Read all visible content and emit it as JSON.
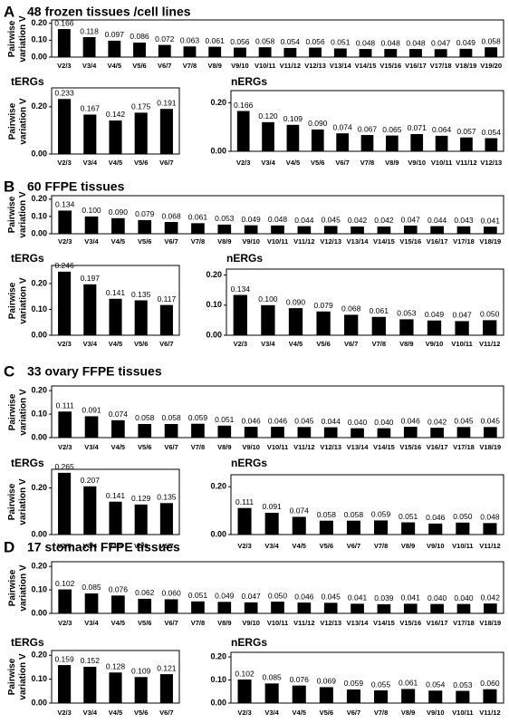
{
  "chart_data": [
    {
      "type": "bar",
      "panel_label": "A",
      "title": "48 frozen tissues /cell lines",
      "ylabel": "Pairwise variation V",
      "color": "#000000",
      "categories": [
        "V2/3",
        "V3/4",
        "V4/5",
        "V5/6",
        "V6/7",
        "V7/8",
        "V8/9",
        "V9/10",
        "V10/11",
        "V11/12",
        "V12/13",
        "V13/14",
        "V14/15",
        "V15/16",
        "V16/17",
        "V17/18",
        "V18/19",
        "V19/20"
      ],
      "values": [
        0.166,
        0.118,
        0.097,
        0.086,
        0.072,
        0.063,
        0.061,
        0.056,
        0.058,
        0.054,
        0.056,
        0.051,
        0.048,
        0.048,
        0.048,
        0.047,
        0.049,
        0.058
      ],
      "value_labels": [
        "0.166",
        "0.118",
        "0.097",
        "0.086",
        "0.072",
        "0.063",
        "0.061",
        "0.056",
        "0.058",
        "0.054",
        "0.056",
        "0.051",
        "0.048",
        "0.048",
        "0.048",
        "0.047",
        "0.049",
        "0.058"
      ],
      "ylim": [
        0,
        0.22
      ],
      "yticks": [
        {
          "value": 0,
          "label": "0.00"
        },
        {
          "value": 0.1,
          "label": "0.10"
        },
        {
          "value": 0.2,
          "label": "0.20"
        }
      ]
    },
    {
      "type": "bar",
      "title": "tERGs",
      "ylabel": "Pairwise variation V",
      "color": "#000000",
      "categories": [
        "V2/3",
        "V3/4",
        "V4/5",
        "V5/6",
        "V6/7"
      ],
      "values": [
        0.233,
        0.167,
        0.142,
        0.175,
        0.191
      ],
      "value_labels": [
        "0.233",
        "0.167",
        "0.142",
        "0.175",
        "0.191"
      ],
      "ylim": [
        0,
        0.28
      ],
      "yticks": [
        {
          "value": 0,
          "label": "0.00"
        },
        {
          "value": 0.2,
          "label": "0.20"
        }
      ]
    },
    {
      "type": "bar",
      "title": "nERGs",
      "color": "#000000",
      "categories": [
        "V2/3",
        "V3/4",
        "V4/5",
        "V5/6",
        "V6/7",
        "V7/8",
        "V8/9",
        "V9/10",
        "V10/11",
        "V11/12",
        "V12/13"
      ],
      "values": [
        0.166,
        0.12,
        0.109,
        0.09,
        0.074,
        0.067,
        0.065,
        0.071,
        0.064,
        0.057,
        0.054
      ],
      "value_labels": [
        "0.166",
        "0.120",
        "0.109",
        "0.090",
        "0.074",
        "0.067",
        "0.065",
        "0.071",
        "0.064",
        "0.057",
        "0.054"
      ],
      "ylim": [
        0,
        0.25
      ],
      "yticks": [
        {
          "value": 0,
          "label": "0.00"
        },
        {
          "value": 0.2,
          "label": "0.20"
        }
      ]
    },
    {
      "type": "bar",
      "panel_label": "B",
      "title": "60 FFPE tissues",
      "ylabel": "Pairwise variation V",
      "color": "#000000",
      "categories": [
        "V2/3",
        "V3/4",
        "V4/5",
        "V5/6",
        "V6/7",
        "V7/8",
        "V8/9",
        "V9/10",
        "V10/11",
        "V11/12",
        "V12/13",
        "V13/14",
        "V14/15",
        "V15/16",
        "V16/17",
        "V17/18",
        "V18/19"
      ],
      "values": [
        0.134,
        0.1,
        0.09,
        0.079,
        0.068,
        0.061,
        0.053,
        0.049,
        0.048,
        0.044,
        0.045,
        0.042,
        0.042,
        0.047,
        0.044,
        0.043,
        0.041
      ],
      "value_labels": [
        "0.134",
        "0.100",
        "0.090",
        "0.079",
        "0.068",
        "0.061",
        "0.053",
        "0.049",
        "0.048",
        "0.044",
        "0.045",
        "0.042",
        "0.042",
        "0.047",
        "0.044",
        "0.043",
        "0.041"
      ],
      "ylim": [
        0,
        0.22
      ],
      "yticks": [
        {
          "value": 0,
          "label": "0.00"
        },
        {
          "value": 0.1,
          "label": "0.10"
        },
        {
          "value": 0.2,
          "label": "0.20"
        }
      ]
    },
    {
      "type": "bar",
      "title": "tERGs",
      "ylabel": "Pairwise variation V",
      "color": "#000000",
      "categories": [
        "V2/3",
        "V3/4",
        "V4/5",
        "V5/6",
        "V6/7"
      ],
      "values": [
        0.246,
        0.197,
        0.141,
        0.135,
        0.117
      ],
      "value_labels": [
        "0.246",
        "0.197",
        "0.141",
        "0.135",
        "0.117"
      ],
      "ylim": [
        0,
        0.27
      ],
      "yticks": [
        {
          "value": 0,
          "label": "0.00"
        },
        {
          "value": 0.1,
          "label": "0.10"
        },
        {
          "value": 0.2,
          "label": "0.20"
        }
      ]
    },
    {
      "type": "bar",
      "title": "nERGs",
      "color": "#000000",
      "categories": [
        "V2/3",
        "V3/4",
        "V4/5",
        "V5/6",
        "V6/7",
        "V7/8",
        "V8/9",
        "V9/10",
        "V10/11",
        "V11/12"
      ],
      "values": [
        0.134,
        0.1,
        0.09,
        0.079,
        0.068,
        0.061,
        0.053,
        0.049,
        0.047,
        0.05
      ],
      "value_labels": [
        "0.134",
        "0.100",
        "0.090",
        "0.079",
        "0.068",
        "0.061",
        "0.053",
        "0.049",
        "0.047",
        "0.050"
      ],
      "ylim": [
        0,
        0.22
      ],
      "yticks": [
        {
          "value": 0,
          "label": "0.00"
        },
        {
          "value": 0.1,
          "label": "0.10"
        },
        {
          "value": 0.2,
          "label": "0.20"
        }
      ]
    },
    {
      "type": "bar",
      "panel_label": "C",
      "title": "33 ovary FFPE tissues",
      "ylabel": "Pairwise variation V",
      "color": "#000000",
      "categories": [
        "V2/3",
        "V3/4",
        "V4/5",
        "V5/6",
        "V6/7",
        "V7/8",
        "V8/9",
        "V9/10",
        "V10/11",
        "V11/12",
        "V12/13",
        "V13/14",
        "V14/15",
        "V15/16",
        "V16/17",
        "V17/18",
        "V18/19"
      ],
      "values": [
        0.111,
        0.091,
        0.074,
        0.058,
        0.058,
        0.059,
        0.051,
        0.046,
        0.046,
        0.045,
        0.044,
        0.04,
        0.04,
        0.046,
        0.042,
        0.045,
        0.045
      ],
      "value_labels": [
        "0.111",
        "0.091",
        "0.074",
        "0.058",
        "0.058",
        "0.059",
        "0.051",
        "0.046",
        "0.046",
        "0.045",
        "0.044",
        "0.040",
        "0.040",
        "0.046",
        "0.042",
        "0.045",
        "0.045"
      ],
      "ylim": [
        0,
        0.22
      ],
      "yticks": [
        {
          "value": 0,
          "label": "0.00"
        },
        {
          "value": 0.1,
          "label": "0.10"
        },
        {
          "value": 0.2,
          "label": "0.20"
        }
      ]
    },
    {
      "type": "bar",
      "title": "tERGs",
      "ylabel": "Pairwise variation V",
      "color": "#000000",
      "categories": [
        "V2/3",
        "V3/4",
        "V4/5",
        "V5/6",
        "V6/7"
      ],
      "values": [
        0.265,
        0.207,
        0.141,
        0.129,
        0.135
      ],
      "value_labels": [
        "0.265",
        "0.207",
        "0.141",
        "0.129",
        "0.135"
      ],
      "ylim": [
        0,
        0.28
      ],
      "yticks": [
        {
          "value": 0,
          "label": "0.00"
        },
        {
          "value": 0.2,
          "label": "0.20"
        }
      ]
    },
    {
      "type": "bar",
      "title": "nERGs",
      "color": "#000000",
      "categories": [
        "V2/3",
        "V3/4",
        "V4/5",
        "V5/6",
        "V6/7",
        "V7/8",
        "V8/9",
        "V9/10",
        "V10/11",
        "V11/12"
      ],
      "values": [
        0.111,
        0.091,
        0.074,
        0.058,
        0.058,
        0.059,
        0.051,
        0.046,
        0.05,
        0.048
      ],
      "value_labels": [
        "0.111",
        "0.091",
        "0.074",
        "0.058",
        "0.058",
        "0.059",
        "0.051",
        "0.046",
        "0.050",
        "0.048"
      ],
      "ylim": [
        0,
        0.25
      ],
      "yticks": [
        {
          "value": 0,
          "label": "0.00"
        },
        {
          "value": 0.2,
          "label": "0.20"
        }
      ]
    },
    {
      "type": "bar",
      "panel_label": "D",
      "title": "17 stomach FFPE tissues",
      "ylabel": "Pairwise variation V",
      "color": "#000000",
      "categories": [
        "V2/3",
        "V3/4",
        "V4/5",
        "V5/6",
        "V6/7",
        "V7/8",
        "V8/9",
        "V9/10",
        "V10/11",
        "V11/12",
        "V12/13",
        "V13/14",
        "V14/15",
        "V15/16",
        "V16/17",
        "V17/18",
        "V18/19"
      ],
      "values": [
        0.102,
        0.085,
        0.076,
        0.062,
        0.06,
        0.051,
        0.049,
        0.047,
        0.05,
        0.046,
        0.045,
        0.041,
        0.039,
        0.041,
        0.04,
        0.04,
        0.042
      ],
      "value_labels": [
        "0.102",
        "0.085",
        "0.076",
        "0.062",
        "0.060",
        "0.051",
        "0.049",
        "0.047",
        "0.050",
        "0.046",
        "0.045",
        "0.041",
        "0.039",
        "0.041",
        "0.040",
        "0.040",
        "0.042"
      ],
      "ylim": [
        0,
        0.22
      ],
      "yticks": [
        {
          "value": 0,
          "label": "0.00"
        },
        {
          "value": 0.1,
          "label": "0.10"
        },
        {
          "value": 0.2,
          "label": "0.20"
        }
      ]
    },
    {
      "type": "bar",
      "title": "tERGs",
      "ylabel": "Pairwise variation V",
      "color": "#000000",
      "categories": [
        "V2/3",
        "V3/4",
        "V4/5",
        "V5/6",
        "V6/7"
      ],
      "values": [
        0.159,
        0.152,
        0.128,
        0.109,
        0.121
      ],
      "value_labels": [
        "0.159",
        "0.152",
        "0.128",
        "0.109",
        "0.121"
      ],
      "ylim": [
        0,
        0.22
      ],
      "yticks": [
        {
          "value": 0,
          "label": "0.00"
        },
        {
          "value": 0.1,
          "label": "0.10"
        },
        {
          "value": 0.2,
          "label": "0.20"
        }
      ]
    },
    {
      "type": "bar",
      "title": "nERGs",
      "color": "#000000",
      "categories": [
        "V2/3",
        "V3/4",
        "V4/5",
        "V5/6",
        "V6/7",
        "V7/8",
        "V8/9",
        "V9/10",
        "V10/11",
        "V11/12"
      ],
      "values": [
        0.102,
        0.085,
        0.076,
        0.069,
        0.059,
        0.055,
        0.061,
        0.054,
        0.053,
        0.06
      ],
      "value_labels": [
        "0.102",
        "0.085",
        "0.076",
        "0.069",
        "0.059",
        "0.055",
        "0.061",
        "0.054",
        "0.053",
        "0.060"
      ],
      "ylim": [
        0,
        0.22
      ],
      "yticks": [
        {
          "value": 0,
          "label": "0.00"
        },
        {
          "value": 0.1,
          "label": "0.10"
        },
        {
          "value": 0.2,
          "label": "0.20"
        }
      ]
    }
  ]
}
